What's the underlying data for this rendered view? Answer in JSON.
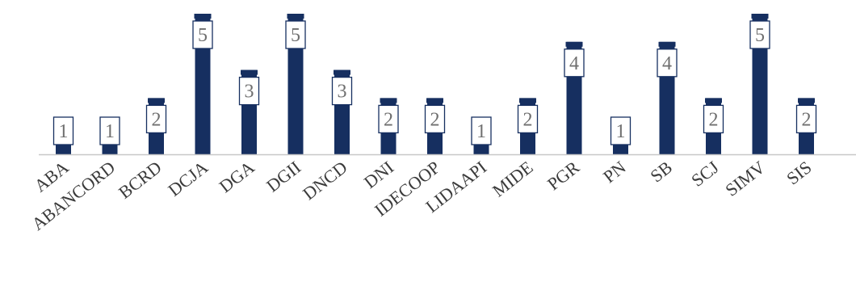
{
  "chart_data": {
    "type": "bar",
    "title": "",
    "xlabel": "",
    "ylabel": "",
    "categories": [
      "ABA",
      "ABANCORD",
      "BCRD",
      "DCJA",
      "DGA",
      "DGII",
      "DNCD",
      "DNI",
      "IDECOOP",
      "LIDAAPI",
      "MIDE",
      "PGR",
      "PN",
      "SB",
      "SCJ",
      "SIMV",
      "SIS"
    ],
    "values": [
      1,
      1,
      2,
      5,
      3,
      5,
      3,
      2,
      2,
      1,
      2,
      4,
      1,
      4,
      2,
      5,
      2
    ],
    "ylim": [
      0,
      5
    ],
    "grid": false,
    "legend": "none",
    "colors": {
      "bar": "#162f60",
      "axis": "#c8c8c8",
      "label_text": "#6f6f6f",
      "label_box_border": "#162f60",
      "tick_text": "#3a3a3a"
    }
  }
}
